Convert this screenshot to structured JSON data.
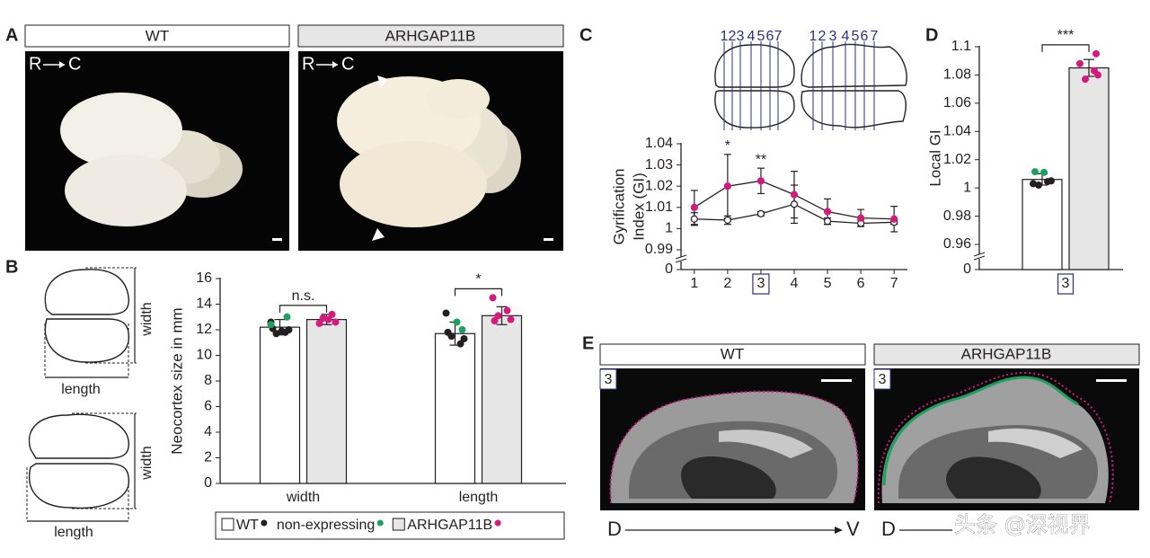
{
  "panel_labels": [
    "A",
    "B",
    "C",
    "D",
    "E"
  ],
  "panel_a": {
    "headers": [
      "WT",
      "ARHGAP11B"
    ],
    "orientation": [
      "R",
      "C"
    ]
  },
  "panel_b_diagrams": {
    "labels": [
      "width",
      "length"
    ]
  },
  "panel_c_sections": [
    "1",
    "2",
    "3",
    "4",
    "5",
    "6",
    "7"
  ],
  "panel_e": {
    "headers": [
      "WT",
      "ARHGAP11B"
    ],
    "section": "3",
    "axis": [
      "D",
      "V"
    ]
  },
  "watermark": "头条 @深视界",
  "chart_data": [
    {
      "type": "bar",
      "ylabel": "Neocortex size in mm",
      "categories": [
        "width",
        "length"
      ],
      "ylim": [
        0,
        16
      ],
      "yticks": [
        0,
        2,
        4,
        6,
        8,
        10,
        12,
        14,
        16
      ],
      "series": [
        {
          "name": "WT",
          "color": "#ffffff",
          "values": [
            12.2,
            11.7
          ],
          "errors": [
            0.6,
            0.9
          ]
        },
        {
          "name": "ARHGAP11B",
          "color": "#e6e6e6",
          "values": [
            12.8,
            13.1
          ],
          "errors": [
            0.4,
            0.7
          ]
        }
      ],
      "dots": [
        {
          "name": "WT",
          "color": "#231f20",
          "values": [
            [
              12.6,
              11.8,
              11.7,
              12.0,
              12.1,
              11.9
            ],
            [
              13.3,
              10.9,
              11.5,
              11.3,
              11.8
            ]
          ]
        },
        {
          "name": "non-expressing",
          "color": "#1aa260",
          "values": [
            [
              13.0,
              12.4
            ],
            [
              12.6,
              12.0
            ]
          ]
        },
        {
          "name": "ARHGAP11B",
          "color": "#d6197c",
          "values": [
            [
              13.2,
              12.9,
              12.6,
              12.5,
              12.8
            ],
            [
              14.5,
              13.5,
              13.1,
              12.8,
              12.7
            ]
          ]
        }
      ],
      "significance": [
        "n.s.",
        "*"
      ],
      "legend": true
    },
    {
      "type": "line",
      "ylabel": [
        "Gyrification",
        "Index (GI)"
      ],
      "x": [
        1,
        2,
        3,
        4,
        5,
        6,
        7
      ],
      "xlim": [
        0.6,
        7.4
      ],
      "xticks": [
        1,
        2,
        3,
        4,
        5,
        6,
        7
      ],
      "highlight_x": 3,
      "ylim": [
        0.99,
        1.04
      ],
      "yticks": [
        0.99,
        1,
        1.01,
        1.02,
        1.03,
        1.04
      ],
      "ybreak_tick": 0,
      "line_color": "#231f20",
      "series": [
        {
          "name": "WT",
          "color": "#ffffff",
          "values": [
            1.0045,
            1.004,
            1.007,
            1.0115,
            1.0035,
            1.0025,
            1.003
          ],
          "errors": [
            0.003,
            0.002,
            0.001,
            0.009,
            0.0015,
            0.0015,
            0.001
          ]
        },
        {
          "name": "ARHGAP11B",
          "color": "#d6197c",
          "values": [
            1.01,
            1.02,
            1.0225,
            1.016,
            1.008,
            1.005,
            1.0045
          ],
          "errors": [
            0.008,
            0.015,
            0.006,
            0.011,
            0.006,
            0.004,
            0.006
          ]
        }
      ],
      "significance": [
        null,
        "*",
        "**",
        null,
        null,
        null,
        null
      ]
    },
    {
      "type": "bar",
      "ylabel": "Local GI",
      "categories": [
        "3"
      ],
      "category_box": true,
      "ylim": [
        0.96,
        1.1
      ],
      "yticks": [
        0.96,
        0.98,
        1,
        1.02,
        1.04,
        1.06,
        1.08,
        1.1
      ],
      "ybreak_tick": 0,
      "series": [
        {
          "name": "WT",
          "color": "#ffffff",
          "values": [
            1.006
          ],
          "errors": [
            0.004
          ]
        },
        {
          "name": "ARHGAP11B",
          "color": "#e6e6e6",
          "values": [
            1.085
          ],
          "errors": [
            0.006
          ]
        }
      ],
      "dots": [
        {
          "name": "WT",
          "color": "#231f20",
          "values": [
            [
              1.003,
              1.0045,
              1.002,
              1.005
            ]
          ]
        },
        {
          "name": "non-expressing",
          "color": "#1aa260",
          "values": [
            [
              1.0115,
              1.011
            ]
          ]
        },
        {
          "name": "ARHGAP11B",
          "color": "#d6197c",
          "values": [
            [
              1.095,
              1.088,
              1.083,
              1.077,
              1.08
            ]
          ]
        }
      ],
      "significance": [
        "***"
      ]
    }
  ]
}
